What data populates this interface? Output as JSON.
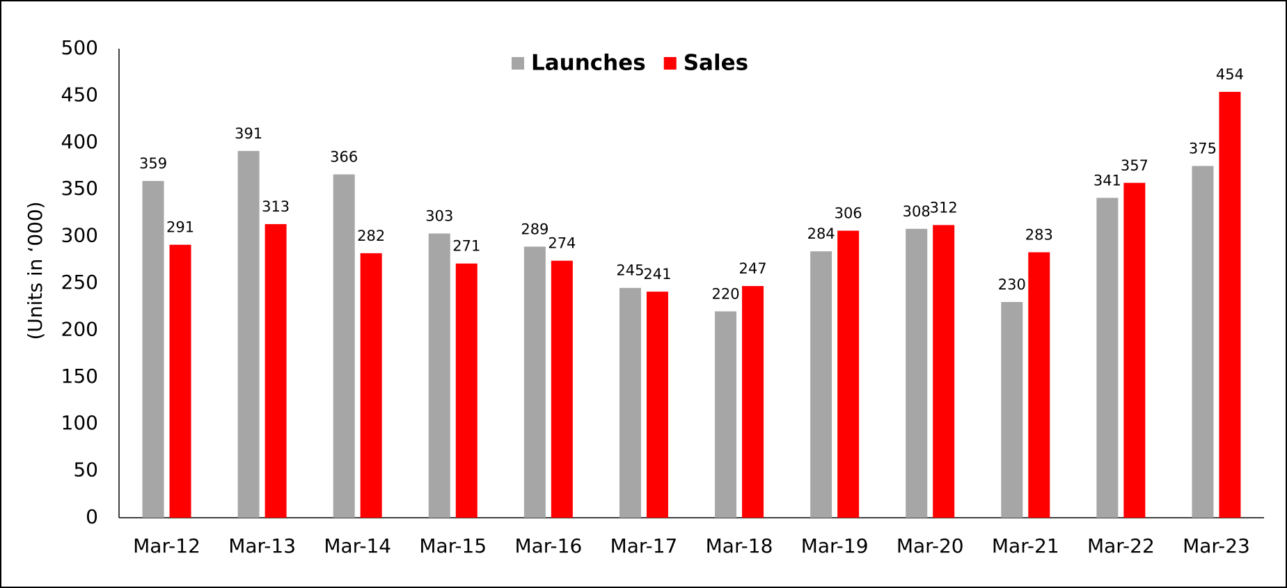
{
  "chart_data": {
    "type": "bar",
    "y_label": "(Units in ‘000)",
    "categories": [
      "Mar-12",
      "Mar-13",
      "Mar-14",
      "Mar-15",
      "Mar-16",
      "Mar-17",
      "Mar-18",
      "Mar-19",
      "Mar-20",
      "Mar-21",
      "Mar-22",
      "Mar-23"
    ],
    "series": [
      {
        "name": "Launches",
        "color": "#a6a6a6",
        "values": [
          359,
          391,
          366,
          303,
          289,
          245,
          220,
          284,
          308,
          230,
          341,
          375
        ]
      },
      {
        "name": "Sales",
        "color": "#ff0000",
        "values": [
          291,
          313,
          282,
          271,
          274,
          241,
          247,
          306,
          312,
          283,
          357,
          454
        ]
      }
    ],
    "ylim": [
      0,
      500
    ],
    "yticks": [
      0,
      50,
      100,
      150,
      200,
      250,
      300,
      350,
      400,
      450,
      500
    ],
    "legend": "top",
    "grid": false
  }
}
